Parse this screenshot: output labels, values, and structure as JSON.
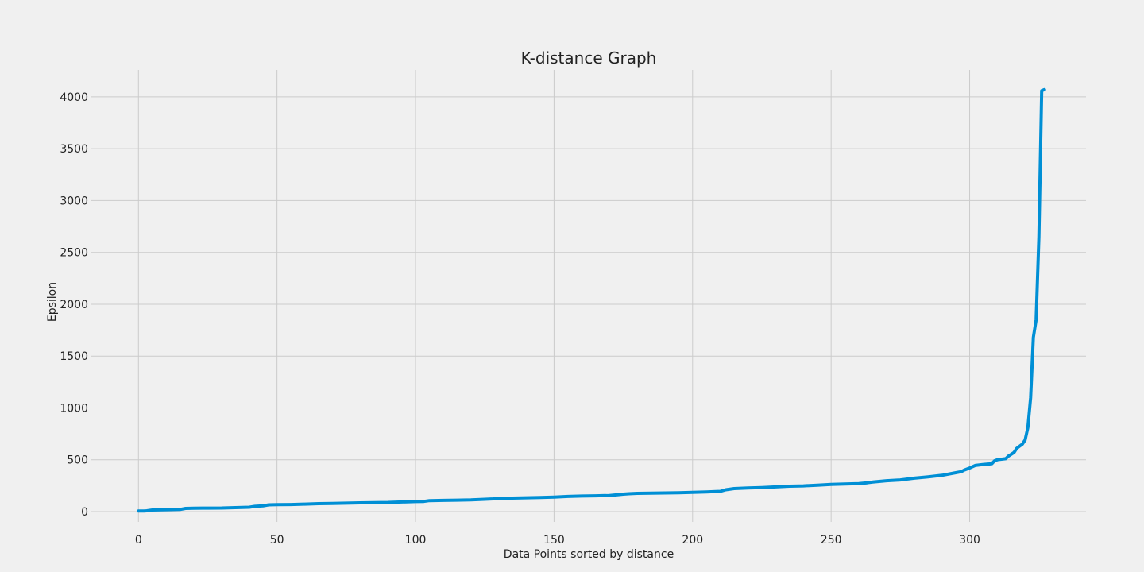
{
  "chart_data": {
    "type": "line",
    "title": "K-distance Graph",
    "xlabel": "Data Points sorted by distance",
    "ylabel": "Epsilon",
    "xlim": [
      -17,
      342
    ],
    "ylim": [
      -100,
      4260
    ],
    "xticks": [
      0,
      50,
      100,
      150,
      200,
      250,
      300
    ],
    "yticks": [
      0,
      500,
      1000,
      1500,
      2000,
      2500,
      3000,
      3500,
      4000
    ],
    "grid": true,
    "line_color": "#008fd5",
    "series": [
      {
        "x": [
          0,
          2,
          3,
          5,
          10,
          15,
          17,
          20,
          25,
          30,
          35,
          40,
          42,
          45,
          47,
          50,
          55,
          60,
          65,
          70,
          75,
          80,
          85,
          90,
          95,
          100,
          103,
          105,
          110,
          115,
          120,
          125,
          128,
          130,
          135,
          140,
          145,
          150,
          155,
          160,
          165,
          170,
          175,
          177,
          180,
          185,
          190,
          195,
          200,
          205,
          210,
          212,
          215,
          220,
          225,
          230,
          235,
          240,
          245,
          250,
          255,
          260,
          263,
          265,
          270,
          275,
          277,
          280,
          285,
          290,
          295,
          297,
          298,
          300,
          302,
          305,
          308,
          309,
          310,
          313,
          314,
          316,
          317,
          318,
          319,
          320,
          321,
          322,
          323,
          324,
          325,
          326,
          327
        ],
        "y": [
          5,
          5,
          7,
          15,
          18,
          20,
          30,
          32,
          33,
          34,
          38,
          42,
          50,
          55,
          65,
          66,
          68,
          72,
          76,
          78,
          81,
          84,
          86,
          88,
          92,
          96,
          98,
          105,
          108,
          110,
          112,
          118,
          122,
          126,
          130,
          133,
          136,
          140,
          146,
          150,
          152,
          155,
          168,
          172,
          176,
          178,
          180,
          182,
          185,
          189,
          195,
          210,
          222,
          228,
          232,
          238,
          245,
          248,
          255,
          262,
          266,
          270,
          278,
          285,
          298,
          305,
          312,
          322,
          335,
          350,
          375,
          385,
          400,
          420,
          445,
          455,
          462,
          490,
          500,
          510,
          535,
          570,
          610,
          630,
          650,
          690,
          810,
          1100,
          1680,
          1850,
          2650,
          4060,
          4070
        ]
      }
    ]
  }
}
